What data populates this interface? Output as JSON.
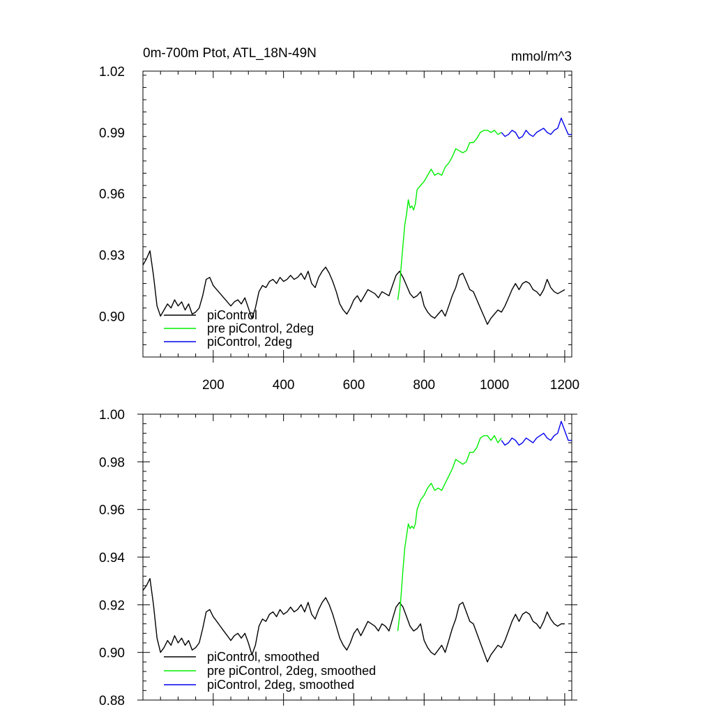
{
  "chart_data": [
    {
      "type": "line",
      "title": "0m-700m Ptot, ATL_18N-49N",
      "units": "mmol/m^3",
      "xlabel": "",
      "ylabel": "",
      "xlim": [
        0,
        1220
      ],
      "ylim": [
        0.88,
        1.02
      ],
      "x_ticks": [
        200,
        400,
        600,
        800,
        1000,
        1200
      ],
      "y_ticks": [
        0.9,
        0.93,
        0.96,
        0.99,
        1.02
      ],
      "y_tick_labels": [
        "0.90",
        "0.93",
        "0.96",
        "0.99",
        "1.02"
      ],
      "grid": false,
      "legend_position": "bottom-left",
      "series": [
        {
          "name": "piControl",
          "color": "#000000",
          "x": [
            0,
            10,
            20,
            30,
            40,
            50,
            60,
            70,
            80,
            90,
            100,
            110,
            120,
            130,
            140,
            150,
            160,
            170,
            180,
            190,
            200,
            210,
            220,
            230,
            240,
            250,
            260,
            270,
            280,
            290,
            300,
            310,
            320,
            330,
            340,
            350,
            360,
            370,
            380,
            390,
            400,
            410,
            420,
            430,
            440,
            450,
            460,
            470,
            480,
            490,
            500,
            510,
            520,
            530,
            540,
            550,
            560,
            570,
            580,
            590,
            600,
            610,
            620,
            630,
            640,
            650,
            660,
            670,
            680,
            690,
            700,
            710,
            720,
            730,
            740,
            750,
            760,
            770,
            780,
            790,
            800,
            810,
            820,
            830,
            840,
            850,
            860,
            870,
            880,
            890,
            900,
            910,
            920,
            930,
            940,
            950,
            960,
            970,
            980,
            990,
            1000,
            1010,
            1020,
            1030,
            1040,
            1050,
            1060,
            1070,
            1080,
            1090,
            1100,
            1110,
            1120,
            1130,
            1140,
            1150,
            1160,
            1170,
            1180,
            1190,
            1200
          ],
          "values": [
            0.925,
            0.928,
            0.932,
            0.92,
            0.905,
            0.9,
            0.903,
            0.906,
            0.904,
            0.908,
            0.905,
            0.907,
            0.903,
            0.906,
            0.901,
            0.902,
            0.904,
            0.91,
            0.918,
            0.919,
            0.915,
            0.913,
            0.911,
            0.909,
            0.907,
            0.905,
            0.907,
            0.908,
            0.906,
            0.909,
            0.904,
            0.899,
            0.904,
            0.912,
            0.915,
            0.914,
            0.917,
            0.918,
            0.916,
            0.919,
            0.917,
            0.918,
            0.92,
            0.918,
            0.919,
            0.921,
            0.918,
            0.922,
            0.916,
            0.914,
            0.919,
            0.922,
            0.924,
            0.921,
            0.917,
            0.912,
            0.906,
            0.903,
            0.901,
            0.904,
            0.908,
            0.91,
            0.907,
            0.91,
            0.913,
            0.912,
            0.911,
            0.909,
            0.912,
            0.911,
            0.91,
            0.915,
            0.92,
            0.922,
            0.919,
            0.915,
            0.911,
            0.909,
            0.91,
            0.912,
            0.905,
            0.902,
            0.9,
            0.899,
            0.901,
            0.903,
            0.9,
            0.905,
            0.91,
            0.914,
            0.92,
            0.921,
            0.917,
            0.913,
            0.912,
            0.908,
            0.904,
            0.9,
            0.896,
            0.899,
            0.901,
            0.903,
            0.902,
            0.905,
            0.909,
            0.913,
            0.916,
            0.913,
            0.916,
            0.917,
            0.916,
            0.913,
            0.912,
            0.91,
            0.913,
            0.918,
            0.914,
            0.912,
            0.911,
            0.912,
            0.913
          ]
        },
        {
          "name": "pre piControl, 2deg",
          "color": "#00ee00",
          "x": [
            725,
            730,
            735,
            740,
            745,
            750,
            755,
            760,
            765,
            770,
            775,
            780,
            785,
            790,
            800,
            810,
            820,
            830,
            840,
            850,
            860,
            870,
            880,
            890,
            900,
            910,
            920,
            930,
            940,
            950,
            960,
            970,
            980,
            990,
            1000,
            1010,
            1020
          ],
          "values": [
            0.908,
            0.914,
            0.925,
            0.935,
            0.945,
            0.95,
            0.957,
            0.953,
            0.954,
            0.952,
            0.955,
            0.962,
            0.963,
            0.964,
            0.966,
            0.969,
            0.972,
            0.969,
            0.97,
            0.969,
            0.973,
            0.975,
            0.978,
            0.982,
            0.981,
            0.98,
            0.981,
            0.985,
            0.985,
            0.987,
            0.99,
            0.991,
            0.991,
            0.99,
            0.991,
            0.989,
            0.99
          ]
        },
        {
          "name": "piControl, 2deg",
          "color": "#0000ee",
          "x": [
            1020,
            1030,
            1040,
            1050,
            1060,
            1070,
            1080,
            1090,
            1100,
            1110,
            1120,
            1130,
            1140,
            1150,
            1160,
            1170,
            1180,
            1190,
            1200,
            1210,
            1220
          ],
          "values": [
            0.99,
            0.988,
            0.989,
            0.991,
            0.99,
            0.987,
            0.988,
            0.991,
            0.989,
            0.988,
            0.99,
            0.991,
            0.992,
            0.99,
            0.989,
            0.991,
            0.992,
            0.997,
            0.993,
            0.989,
            0.989
          ]
        }
      ]
    },
    {
      "type": "line",
      "title": "",
      "xlabel": "",
      "ylabel": "",
      "xlim": [
        0,
        1220
      ],
      "ylim": [
        0.88,
        1.0
      ],
      "x_ticks": [
        200,
        400,
        600,
        800,
        1000,
        1200
      ],
      "y_ticks": [
        0.88,
        0.9,
        0.92,
        0.94,
        0.96,
        0.98,
        1.0
      ],
      "y_tick_labels": [
        "0.88",
        "0.90",
        "0.92",
        "0.94",
        "0.96",
        "0.98",
        "1.00"
      ],
      "grid": false,
      "legend_position": "bottom-left",
      "series": [
        {
          "name": "piControl, smoothed",
          "color": "#000000",
          "x": [
            0,
            10,
            20,
            30,
            40,
            50,
            60,
            70,
            80,
            90,
            100,
            110,
            120,
            130,
            140,
            150,
            160,
            170,
            180,
            190,
            200,
            210,
            220,
            230,
            240,
            250,
            260,
            270,
            280,
            290,
            300,
            310,
            320,
            330,
            340,
            350,
            360,
            370,
            380,
            390,
            400,
            410,
            420,
            430,
            440,
            450,
            460,
            470,
            480,
            490,
            500,
            510,
            520,
            530,
            540,
            550,
            560,
            570,
            580,
            590,
            600,
            610,
            620,
            630,
            640,
            650,
            660,
            670,
            680,
            690,
            700,
            710,
            720,
            730,
            740,
            750,
            760,
            770,
            780,
            790,
            800,
            810,
            820,
            830,
            840,
            850,
            860,
            870,
            880,
            890,
            900,
            910,
            920,
            930,
            940,
            950,
            960,
            970,
            980,
            990,
            1000,
            1010,
            1020,
            1030,
            1040,
            1050,
            1060,
            1070,
            1080,
            1090,
            1100,
            1110,
            1120,
            1130,
            1140,
            1150,
            1160,
            1170,
            1180,
            1190,
            1200
          ],
          "values": [
            0.926,
            0.928,
            0.931,
            0.92,
            0.906,
            0.9,
            0.902,
            0.905,
            0.903,
            0.907,
            0.904,
            0.906,
            0.903,
            0.905,
            0.901,
            0.902,
            0.904,
            0.91,
            0.917,
            0.918,
            0.915,
            0.913,
            0.911,
            0.909,
            0.907,
            0.905,
            0.907,
            0.908,
            0.906,
            0.908,
            0.904,
            0.899,
            0.903,
            0.911,
            0.914,
            0.913,
            0.916,
            0.917,
            0.915,
            0.918,
            0.916,
            0.917,
            0.919,
            0.917,
            0.918,
            0.92,
            0.917,
            0.921,
            0.916,
            0.914,
            0.918,
            0.921,
            0.923,
            0.92,
            0.916,
            0.911,
            0.906,
            0.903,
            0.901,
            0.904,
            0.908,
            0.91,
            0.907,
            0.91,
            0.913,
            0.912,
            0.911,
            0.909,
            0.912,
            0.911,
            0.909,
            0.914,
            0.919,
            0.921,
            0.919,
            0.915,
            0.911,
            0.909,
            0.91,
            0.912,
            0.905,
            0.902,
            0.9,
            0.899,
            0.901,
            0.903,
            0.9,
            0.905,
            0.91,
            0.914,
            0.92,
            0.921,
            0.917,
            0.913,
            0.912,
            0.908,
            0.904,
            0.9,
            0.896,
            0.899,
            0.901,
            0.903,
            0.902,
            0.905,
            0.909,
            0.913,
            0.916,
            0.913,
            0.916,
            0.917,
            0.916,
            0.913,
            0.912,
            0.91,
            0.913,
            0.917,
            0.914,
            0.912,
            0.911,
            0.912,
            0.912
          ]
        },
        {
          "name": "pre piControl, 2deg, smoothed",
          "color": "#00ee00",
          "x": [
            725,
            730,
            735,
            740,
            745,
            750,
            755,
            760,
            765,
            770,
            775,
            780,
            785,
            790,
            800,
            810,
            820,
            830,
            840,
            850,
            860,
            870,
            880,
            890,
            900,
            910,
            920,
            930,
            940,
            950,
            960,
            970,
            980,
            990,
            1000,
            1010,
            1020
          ],
          "values": [
            0.909,
            0.915,
            0.925,
            0.935,
            0.944,
            0.949,
            0.954,
            0.952,
            0.953,
            0.952,
            0.954,
            0.96,
            0.962,
            0.964,
            0.966,
            0.969,
            0.971,
            0.968,
            0.969,
            0.968,
            0.971,
            0.974,
            0.977,
            0.981,
            0.98,
            0.979,
            0.98,
            0.984,
            0.984,
            0.986,
            0.99,
            0.991,
            0.991,
            0.989,
            0.991,
            0.988,
            0.99
          ]
        },
        {
          "name": "piControl, 2deg, smoothed",
          "color": "#0000ee",
          "x": [
            1020,
            1030,
            1040,
            1050,
            1060,
            1070,
            1080,
            1090,
            1100,
            1110,
            1120,
            1130,
            1140,
            1150,
            1160,
            1170,
            1180,
            1190,
            1200,
            1210,
            1220
          ],
          "values": [
            0.989,
            0.987,
            0.988,
            0.99,
            0.989,
            0.987,
            0.988,
            0.99,
            0.989,
            0.988,
            0.99,
            0.991,
            0.992,
            0.99,
            0.989,
            0.991,
            0.992,
            0.997,
            0.993,
            0.989,
            0.989
          ]
        }
      ]
    }
  ]
}
